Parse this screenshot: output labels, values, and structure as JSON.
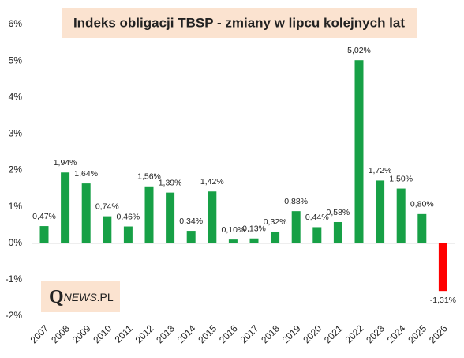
{
  "chart_data": {
    "type": "bar",
    "title": "Indeks obligacji TBSP - zmiany w lipcu kolejnych lat",
    "logo": [
      "Q",
      "NEWS",
      ".PL"
    ],
    "categories": [
      "2007",
      "2008",
      "2009",
      "2010",
      "2011",
      "2012",
      "2013",
      "2014",
      "2015",
      "2016",
      "2017",
      "2018",
      "2019",
      "2020",
      "2021",
      "2022",
      "2023",
      "2024",
      "2025",
      "2026"
    ],
    "values": [
      0.47,
      1.94,
      1.64,
      0.74,
      0.46,
      1.56,
      1.39,
      0.34,
      1.42,
      0.1,
      0.13,
      0.32,
      0.88,
      0.44,
      0.58,
      5.02,
      1.72,
      1.5,
      0.8,
      -1.31
    ],
    "value_labels": [
      "0,47%",
      "1,94%",
      "1,64%",
      "0,74%",
      "0,46%",
      "1,56%",
      "1,39%",
      "0,34%",
      "1,42%",
      "0,10%",
      "0,13%",
      "0,32%",
      "0,88%",
      "0,44%",
      "0,58%",
      "5,02%",
      "1,72%",
      "1,50%",
      "0,80%",
      "-1,31%"
    ],
    "color": "#17a046",
    "negative_color": "#ff0000",
    "ylim": [
      -2,
      6
    ],
    "yticks": [
      {
        "value": -2,
        "label": "-2%"
      },
      {
        "value": -1,
        "label": "-1%"
      },
      {
        "value": 0,
        "label": "0%"
      },
      {
        "value": 1,
        "label": "1%"
      },
      {
        "value": 2,
        "label": "2%"
      },
      {
        "value": 3,
        "label": "3%"
      },
      {
        "value": 4,
        "label": "4%"
      },
      {
        "value": 5,
        "label": "5%"
      },
      {
        "value": 6,
        "label": "6%"
      }
    ],
    "grid": false
  }
}
